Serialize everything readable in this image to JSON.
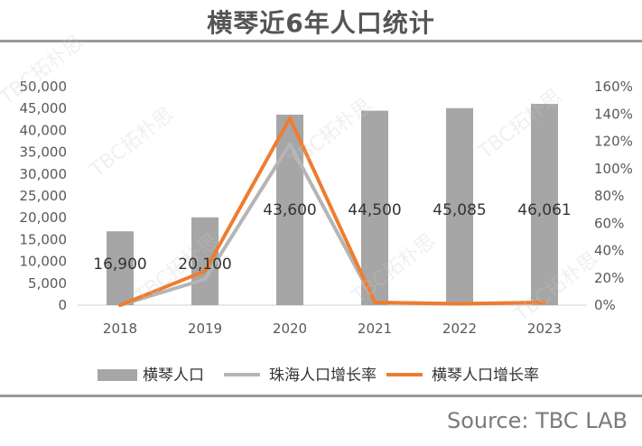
{
  "title": "横琴近6年人口统计",
  "source": "Source: TBC LAB",
  "watermark": "TBC拓朴思",
  "colors": {
    "bar": "#a6a6a6",
    "zhuhai": "#b5b5b5",
    "hengqin": "#ed7d31"
  },
  "chart_data": {
    "type": "bar",
    "categories": [
      "2018",
      "2019",
      "2020",
      "2021",
      "2022",
      "2023"
    ],
    "series": [
      {
        "name": "横琴人口",
        "type": "bar",
        "axis": "left",
        "values": [
          16900,
          20100,
          43600,
          44500,
          45085,
          46061
        ],
        "labels": [
          "16,900",
          "20,100",
          "43,600",
          "44,500",
          "45,085",
          "46,061"
        ]
      },
      {
        "name": "珠海人口增长率",
        "type": "line",
        "axis": "right",
        "values": [
          0,
          19,
          118,
          2,
          1,
          2
        ]
      },
      {
        "name": "横琴人口增长率",
        "type": "line",
        "axis": "right",
        "values": [
          0,
          25,
          137,
          2,
          1,
          2
        ]
      }
    ],
    "ylim": [
      0,
      50000
    ],
    "y2lim": [
      0,
      160
    ],
    "yticks": [
      "0",
      "5,000",
      "10,000",
      "15,000",
      "20,000",
      "25,000",
      "30,000",
      "35,000",
      "40,000",
      "45,000",
      "50,000"
    ],
    "y2ticks": [
      "0%",
      "20%",
      "40%",
      "60%",
      "80%",
      "100%",
      "120%",
      "140%",
      "160%"
    ],
    "grid": false,
    "legend": "bottom"
  }
}
